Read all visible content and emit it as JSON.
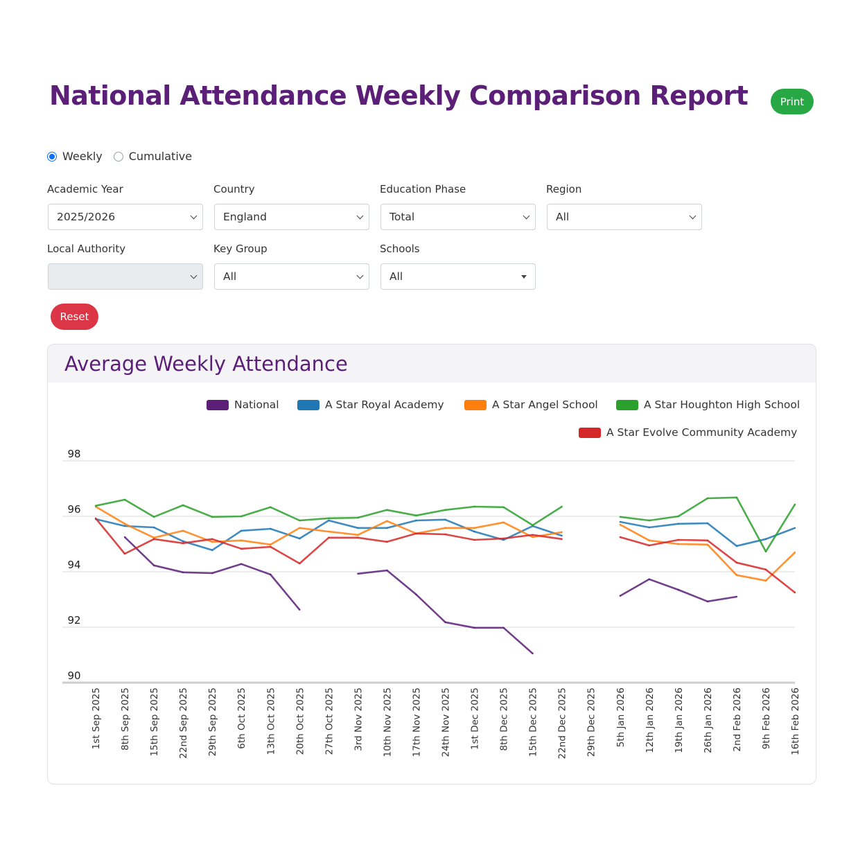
{
  "header": {
    "title": "National Attendance Weekly Comparison Report",
    "print_label": "Print"
  },
  "mode": {
    "options": [
      {
        "label": "Weekly",
        "checked": true
      },
      {
        "label": "Cumulative",
        "checked": false
      }
    ]
  },
  "filters": {
    "academic_year": {
      "label": "Academic Year",
      "value": "2025/2026"
    },
    "country": {
      "label": "Country",
      "value": "England"
    },
    "education_phase": {
      "label": "Education Phase",
      "value": "Total"
    },
    "region": {
      "label": "Region",
      "value": "All"
    },
    "local_authority": {
      "label": "Local Authority",
      "value": ""
    },
    "key_group": {
      "label": "Key Group",
      "value": "All"
    },
    "schools": {
      "label": "Schools",
      "value": "All"
    },
    "reset_label": "Reset"
  },
  "card": {
    "title": "Average Weekly Attendance"
  },
  "chart_data": {
    "type": "line",
    "title": "Average Weekly Attendance",
    "xlabel": "",
    "ylabel": "",
    "ylim": [
      90,
      98
    ],
    "yticks": [
      90,
      92,
      94,
      96,
      98
    ],
    "grid": true,
    "legend": "top-right",
    "categories": [
      "1st Sep 2025",
      "8th Sep 2025",
      "15th Sep 2025",
      "22nd Sep 2025",
      "29th Sep 2025",
      "6th Oct 2025",
      "13th Oct 2025",
      "20th Oct 2025",
      "27th Oct 2025",
      "3rd Nov 2025",
      "10th Nov 2025",
      "17th Nov 2025",
      "24th Nov 2025",
      "1st Dec 2025",
      "8th Dec 2025",
      "15th Dec 2025",
      "22nd Dec 2025",
      "29th Dec 2025",
      "5th Jan 2026",
      "12th Jan 2026",
      "19th Jan 2026",
      "26th Jan 2026",
      "2nd Feb 2026",
      "9th Feb 2026",
      "16th Feb 2026"
    ],
    "series": [
      {
        "name": "National",
        "color": "#5b1f78",
        "values": [
          null,
          95.25,
          94.23,
          93.98,
          93.95,
          94.28,
          93.9,
          92.63,
          null,
          93.93,
          94.05,
          93.18,
          92.18,
          91.98,
          91.98,
          91.05,
          null,
          null,
          93.13,
          93.73,
          93.35,
          92.93,
          93.1,
          null,
          null
        ]
      },
      {
        "name": "A Star Royal Academy",
        "color": "#1f77b4",
        "values": [
          95.9,
          95.65,
          95.6,
          95.1,
          94.78,
          95.48,
          95.55,
          95.2,
          95.85,
          95.58,
          95.58,
          95.85,
          95.88,
          95.45,
          95.15,
          95.65,
          95.3,
          null,
          95.8,
          95.6,
          95.73,
          95.75,
          94.93,
          95.18,
          95.58
        ]
      },
      {
        "name": "A Star Angel School",
        "color": "#ff7f0e",
        "values": [
          96.35,
          95.73,
          95.23,
          95.48,
          95.08,
          95.13,
          94.98,
          95.58,
          95.45,
          95.33,
          95.83,
          95.38,
          95.58,
          95.58,
          95.78,
          95.25,
          95.43,
          null,
          95.7,
          95.13,
          95.0,
          94.98,
          93.88,
          93.68,
          94.7
        ]
      },
      {
        "name": "A Star Houghton High School",
        "color": "#2ca02c",
        "values": [
          96.38,
          96.6,
          95.98,
          96.4,
          95.98,
          96.0,
          96.33,
          95.85,
          95.93,
          95.95,
          96.23,
          96.03,
          96.23,
          96.35,
          96.33,
          95.68,
          96.35,
          null,
          95.98,
          95.85,
          96.0,
          96.65,
          96.68,
          94.73,
          96.43
        ]
      },
      {
        "name": "A Star Evolve Community Academy",
        "color": "#d62728",
        "values": [
          95.93,
          94.65,
          95.18,
          95.03,
          95.18,
          94.83,
          94.9,
          94.3,
          95.23,
          95.23,
          95.08,
          95.38,
          95.35,
          95.15,
          95.2,
          95.33,
          95.18,
          null,
          95.25,
          94.95,
          95.15,
          95.13,
          94.33,
          94.08,
          93.25
        ]
      }
    ]
  }
}
